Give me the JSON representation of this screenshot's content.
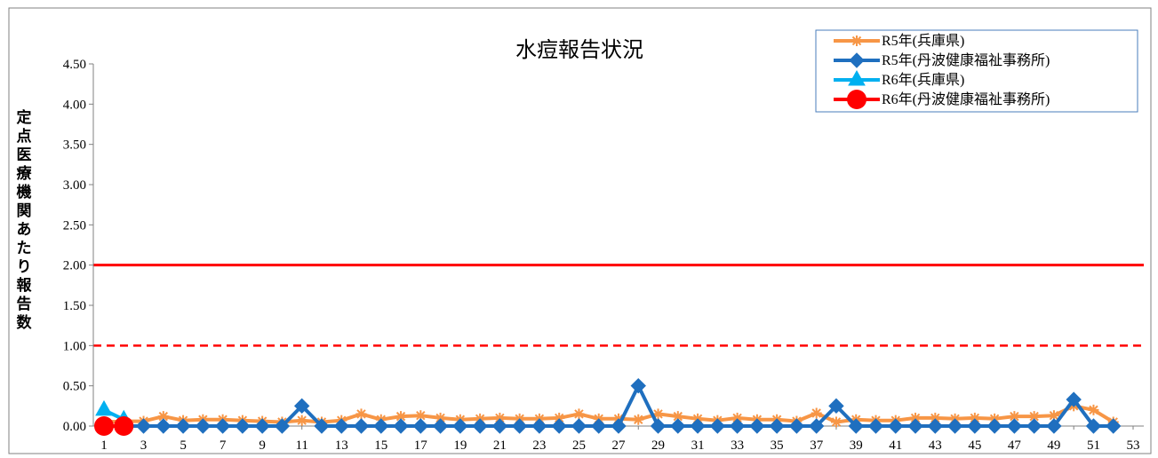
{
  "chart_data": {
    "type": "line",
    "title": "水痘報告状況",
    "ylabel": "定点医療機関あたり報告数",
    "xlabel": "",
    "ylim": [
      0,
      4.5
    ],
    "xlim": [
      1,
      53
    ],
    "yticks": [
      "0.00",
      "0.50",
      "1.00",
      "1.50",
      "2.00",
      "2.50",
      "3.00",
      "3.50",
      "4.00",
      "4.50"
    ],
    "xticks": [
      "1",
      "3",
      "5",
      "7",
      "9",
      "11",
      "13",
      "15",
      "17",
      "19",
      "21",
      "23",
      "25",
      "27",
      "29",
      "31",
      "33",
      "35",
      "37",
      "39",
      "41",
      "43",
      "45",
      "47",
      "49",
      "51",
      "53"
    ],
    "grid": false,
    "legend_position": "top-right",
    "reference_lines": [
      {
        "value": 2.0,
        "style": "solid",
        "color": "#ff0000"
      },
      {
        "value": 1.0,
        "style": "dashed",
        "color": "#ff0000"
      }
    ],
    "series": [
      {
        "name": "R5年(兵庫県)",
        "color": "#f79646",
        "marker": "star",
        "x": [
          1,
          2,
          3,
          4,
          5,
          6,
          7,
          8,
          9,
          10,
          11,
          12,
          13,
          14,
          15,
          16,
          17,
          18,
          19,
          20,
          21,
          22,
          23,
          24,
          25,
          26,
          27,
          28,
          29,
          30,
          31,
          32,
          33,
          34,
          35,
          36,
          37,
          38,
          39,
          40,
          41,
          42,
          43,
          44,
          45,
          46,
          47,
          48,
          49,
          50,
          51,
          52
        ],
        "values": [
          0.05,
          0.06,
          0.06,
          0.12,
          0.07,
          0.08,
          0.08,
          0.07,
          0.06,
          0.05,
          0.07,
          0.05,
          0.07,
          0.15,
          0.08,
          0.12,
          0.13,
          0.1,
          0.08,
          0.09,
          0.1,
          0.09,
          0.09,
          0.1,
          0.15,
          0.09,
          0.09,
          0.08,
          0.15,
          0.12,
          0.09,
          0.07,
          0.1,
          0.08,
          0.08,
          0.06,
          0.16,
          0.05,
          0.08,
          0.07,
          0.07,
          0.1,
          0.1,
          0.09,
          0.1,
          0.09,
          0.12,
          0.12,
          0.13,
          0.25,
          0.2,
          0.05
        ]
      },
      {
        "name": "R5年(丹波健康福祉事務所)",
        "color": "#1f6fbf",
        "marker": "diamond",
        "x": [
          1,
          2,
          3,
          4,
          5,
          6,
          7,
          8,
          9,
          10,
          11,
          12,
          13,
          14,
          15,
          16,
          17,
          18,
          19,
          20,
          21,
          22,
          23,
          24,
          25,
          26,
          27,
          28,
          29,
          30,
          31,
          32,
          33,
          34,
          35,
          36,
          37,
          38,
          39,
          40,
          41,
          42,
          43,
          44,
          45,
          46,
          47,
          48,
          49,
          50,
          51,
          52
        ],
        "values": [
          0,
          0,
          0,
          0,
          0,
          0,
          0,
          0,
          0,
          0,
          0.25,
          0,
          0,
          0,
          0,
          0,
          0,
          0,
          0,
          0,
          0,
          0,
          0,
          0,
          0,
          0,
          0,
          0.5,
          0,
          0,
          0,
          0,
          0,
          0,
          0,
          0,
          0,
          0.25,
          0,
          0,
          0,
          0,
          0,
          0,
          0,
          0,
          0,
          0,
          0,
          0.33,
          0,
          0
        ]
      },
      {
        "name": "R6年(兵庫県)",
        "color": "#00b0f0",
        "marker": "triangle",
        "x": [
          1,
          2
        ],
        "values": [
          0.2,
          0.08
        ]
      },
      {
        "name": "R6年(丹波健康福祉事務所)",
        "color": "#ff0000",
        "marker": "circle",
        "x": [
          1,
          2
        ],
        "values": [
          0,
          0
        ]
      }
    ]
  }
}
